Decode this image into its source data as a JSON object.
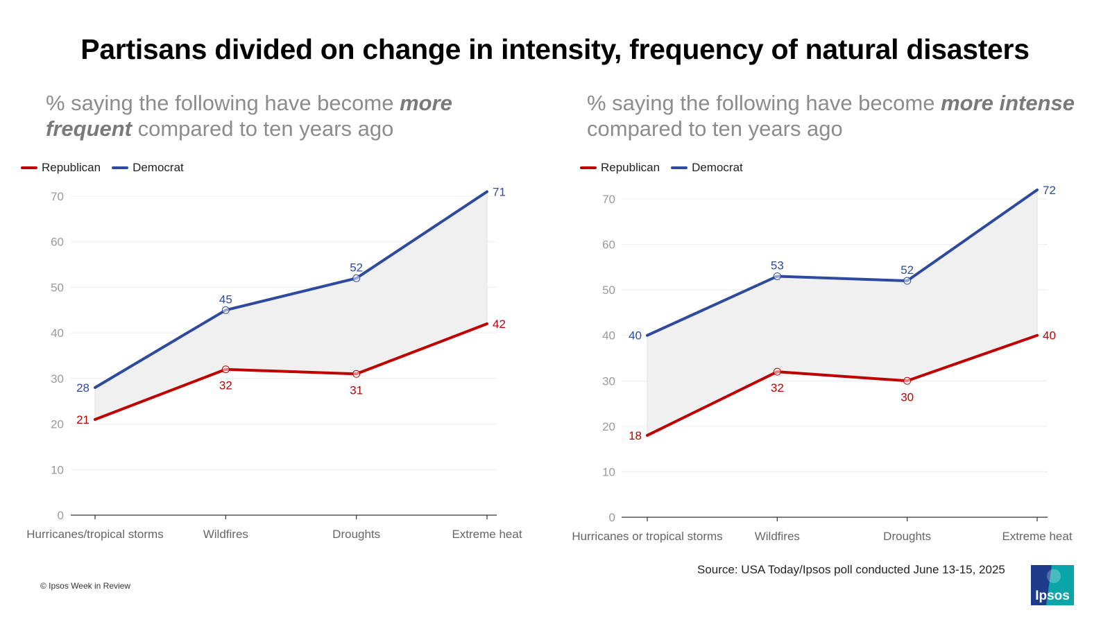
{
  "title": "Partisans divided on change in intensity, frequency of natural disasters",
  "legend": [
    {
      "name": "Republican",
      "color": "#c00000"
    },
    {
      "name": "Democrat",
      "color": "#2e4a9e"
    }
  ],
  "subtitle_left": {
    "prefix": "% saying the following have become ",
    "emphasis": "more frequent",
    "suffix": " compared to ten years ago"
  },
  "subtitle_right": {
    "prefix": "% saying the following have become ",
    "emphasis": "more intense",
    "suffix": " compared to ten years ago"
  },
  "chart_data": [
    {
      "type": "line",
      "categories": [
        "Hurricanes/tropical storms",
        "Wildfires",
        "Droughts",
        "Extreme heat"
      ],
      "series": [
        {
          "name": "Republican",
          "color": "#c00000",
          "values": [
            21,
            32,
            31,
            42
          ]
        },
        {
          "name": "Democrat",
          "color": "#2e4a9e",
          "values": [
            28,
            45,
            52,
            71
          ]
        }
      ],
      "ylim": [
        0,
        70
      ],
      "yticks": [
        0,
        10,
        20,
        30,
        40,
        50,
        60,
        70
      ],
      "grid": true,
      "gap_fill": true,
      "legend_position": "top-left"
    },
    {
      "type": "line",
      "categories": [
        "Hurricanes or tropical storms",
        "Wildfires",
        "Droughts",
        "Extreme heat"
      ],
      "series": [
        {
          "name": "Republican",
          "color": "#c00000",
          "values": [
            18,
            32,
            30,
            40
          ]
        },
        {
          "name": "Democrat",
          "color": "#2e4a9e",
          "values": [
            40,
            53,
            52,
            72
          ]
        }
      ],
      "ylim": [
        0,
        70
      ],
      "yticks": [
        0,
        10,
        20,
        30,
        40,
        50,
        60,
        70
      ],
      "grid": true,
      "gap_fill": true,
      "legend_position": "top-left"
    }
  ],
  "source": "Source: USA Today/Ipsos poll conducted June 13-15, 2025",
  "copyright": "© Ipsos Week in Review",
  "logo": {
    "text": "Ipsos",
    "icon": "ipsos-logo-icon",
    "color": "#00a3a6"
  }
}
